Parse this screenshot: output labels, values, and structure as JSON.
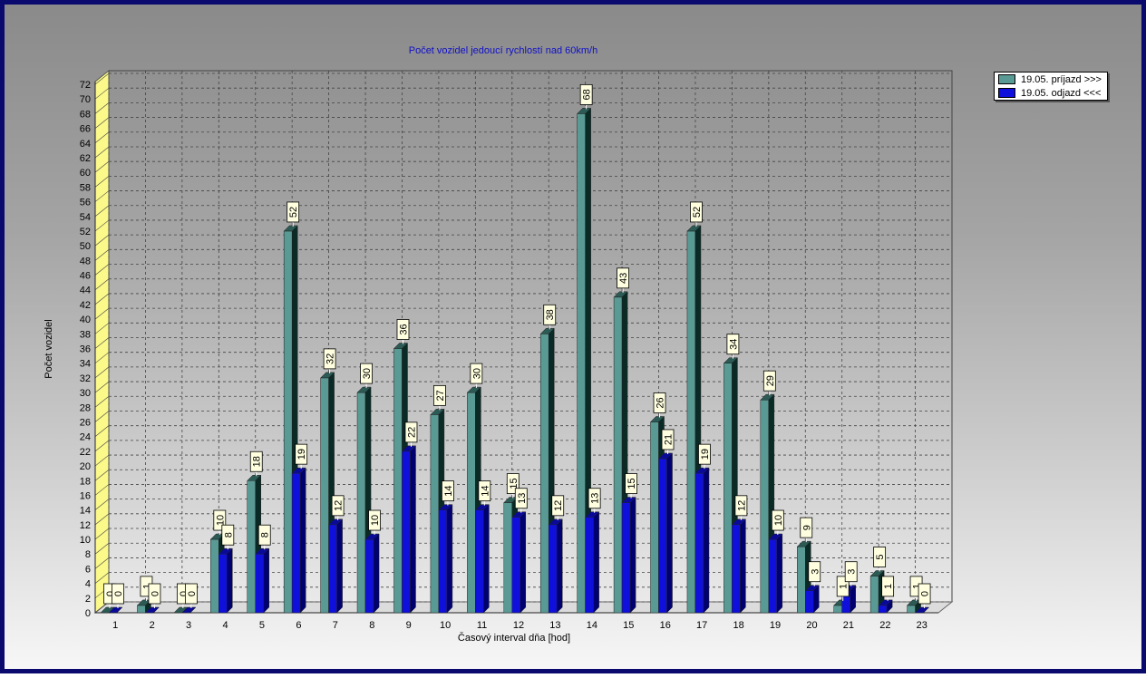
{
  "chart_data": {
    "type": "bar",
    "title": "Počet vozidel jedoucí rychlostí nad 60km/h",
    "xlabel": "Časový interval dňa [hod]",
    "ylabel": "Počet vozidel",
    "ylim": [
      0,
      72
    ],
    "y_ticks": [
      0,
      2,
      4,
      6,
      8,
      10,
      12,
      14,
      16,
      18,
      20,
      22,
      24,
      26,
      28,
      30,
      32,
      34,
      36,
      38,
      40,
      42,
      44,
      46,
      48,
      50,
      52,
      54,
      56,
      58,
      60,
      62,
      64,
      66,
      68,
      70,
      72
    ],
    "grid": true,
    "legend_position": "top-right",
    "categories": [
      "1",
      "2",
      "3",
      "4",
      "5",
      "6",
      "7",
      "8",
      "9",
      "10",
      "11",
      "12",
      "13",
      "14",
      "15",
      "16",
      "17",
      "18",
      "19",
      "20",
      "21",
      "22",
      "23"
    ],
    "series": [
      {
        "name": "19.05.  príjazd >>>",
        "color": "#5a9a94",
        "top_color": "#2c5a55",
        "side_color": "#0a2a26",
        "values": [
          0,
          1,
          0,
          10,
          18,
          52,
          32,
          30,
          36,
          27,
          30,
          15,
          38,
          68,
          43,
          26,
          52,
          34,
          29,
          9,
          1,
          5,
          1
        ],
        "labels": [
          "0",
          "1",
          "0",
          "10",
          "18",
          "52",
          "32",
          "30",
          "36",
          "27",
          "30",
          "15",
          "38",
          "68",
          "43",
          "26",
          "52",
          "34",
          "29",
          "9",
          "1",
          "5",
          "1"
        ]
      },
      {
        "name": "19.05.  odjazd <<<",
        "color": "#1010dc",
        "top_color": "#0a0a9a",
        "side_color": "#000070",
        "values": [
          0,
          0,
          0,
          8,
          8,
          19,
          12,
          10,
          22,
          14,
          14,
          13,
          12,
          13,
          15,
          21,
          19,
          12,
          10,
          3,
          3,
          1,
          0
        ],
        "labels": [
          "0",
          "0",
          "0",
          "8",
          "8",
          "19",
          "12",
          "10",
          "22",
          "14",
          "14",
          "13",
          "12",
          "13",
          "15",
          "21",
          "19",
          "12",
          "10",
          "3",
          "3",
          "1",
          "0"
        ]
      }
    ]
  }
}
